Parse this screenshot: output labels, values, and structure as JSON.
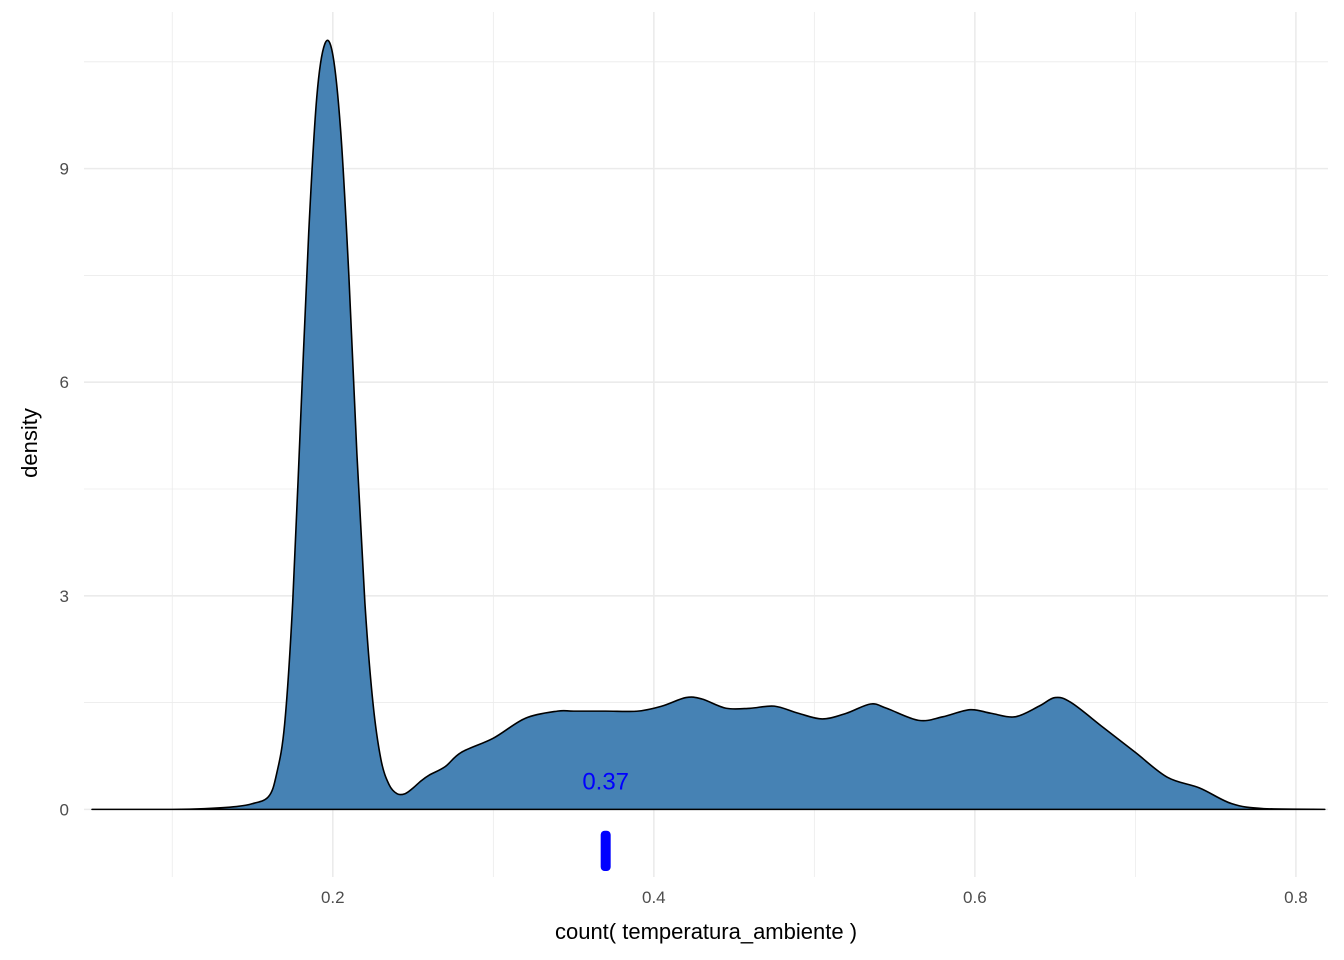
{
  "chart_data": {
    "type": "area",
    "xlabel": "count( temperatura_ambiente )",
    "ylabel": "density",
    "xlim": [
      0.045,
      0.82
    ],
    "ylim": [
      -0.95,
      11.2
    ],
    "x_ticks": [
      0.2,
      0.4,
      0.6,
      0.8
    ],
    "x_tick_labels": [
      "0.2",
      "0.4",
      "0.6",
      "0.8"
    ],
    "y_ticks": [
      0,
      3,
      6,
      9
    ],
    "y_tick_labels": [
      "0",
      "3",
      "6",
      "9"
    ],
    "grid": true,
    "colors": {
      "fill": "#4682b4",
      "outline": "#000000",
      "marker": "#0000ff",
      "grid": "#ebebeb"
    },
    "density_curve": {
      "x": [
        0.05,
        0.1,
        0.12,
        0.14,
        0.15,
        0.16,
        0.165,
        0.17,
        0.175,
        0.18,
        0.185,
        0.19,
        0.195,
        0.2,
        0.205,
        0.21,
        0.215,
        0.22,
        0.225,
        0.23,
        0.235,
        0.24,
        0.245,
        0.25,
        0.255,
        0.26,
        0.27,
        0.28,
        0.3,
        0.32,
        0.34,
        0.35,
        0.37,
        0.39,
        0.405,
        0.42,
        0.43,
        0.445,
        0.46,
        0.475,
        0.49,
        0.505,
        0.52,
        0.535,
        0.545,
        0.565,
        0.58,
        0.597,
        0.61,
        0.625,
        0.64,
        0.65,
        0.66,
        0.68,
        0.7,
        0.72,
        0.74,
        0.76,
        0.78,
        0.818
      ],
      "y": [
        0,
        0,
        0.01,
        0.04,
        0.08,
        0.18,
        0.5,
        1.2,
        2.9,
        5.5,
        8.1,
        10.0,
        10.75,
        10.6,
        9.5,
        7.5,
        5.0,
        2.9,
        1.5,
        0.7,
        0.35,
        0.22,
        0.22,
        0.3,
        0.4,
        0.48,
        0.6,
        0.8,
        1.0,
        1.28,
        1.38,
        1.38,
        1.38,
        1.38,
        1.45,
        1.57,
        1.55,
        1.42,
        1.42,
        1.45,
        1.35,
        1.27,
        1.35,
        1.48,
        1.42,
        1.25,
        1.3,
        1.4,
        1.35,
        1.3,
        1.45,
        1.57,
        1.5,
        1.15,
        0.8,
        0.45,
        0.3,
        0.08,
        0.01,
        0
      ]
    },
    "marker": {
      "x": 0.37,
      "label": "0.37"
    }
  }
}
